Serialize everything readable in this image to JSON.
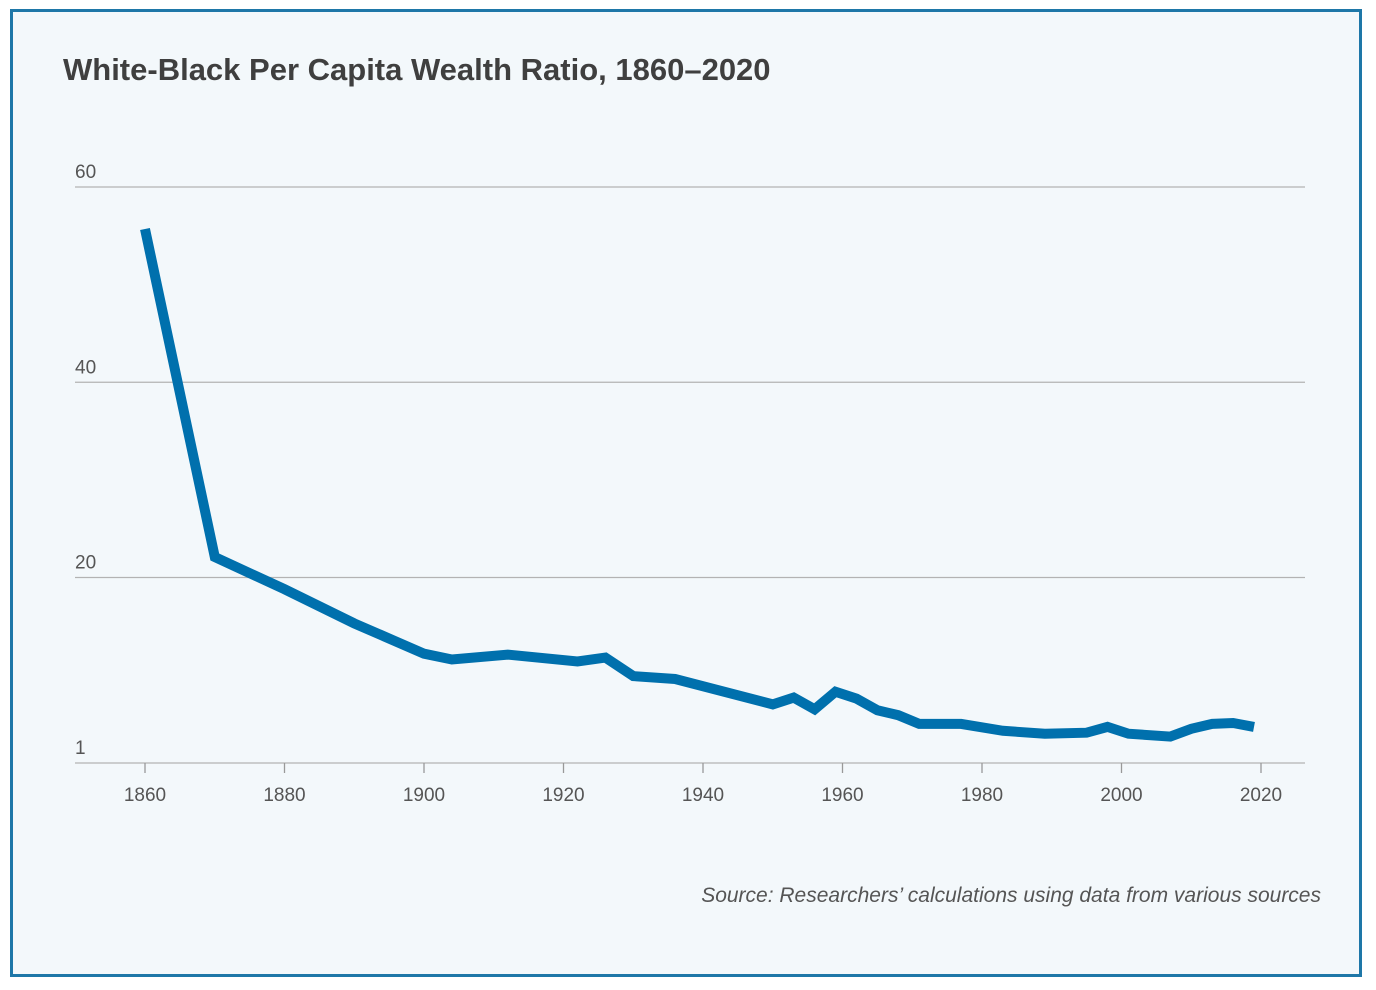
{
  "chart_data": {
    "type": "line",
    "title": "White-Black Per Capita Wealth Ratio, 1860–2020",
    "xlabel": "",
    "ylabel": "",
    "source": "Source: Researchers’ calculations using data from various sources",
    "xlim": [
      1852,
      2026
    ],
    "ylim": [
      1,
      60
    ],
    "x_ticks": [
      1860,
      1880,
      1900,
      1920,
      1940,
      1960,
      1980,
      2000,
      2020
    ],
    "y_ticks": [
      1,
      20,
      40,
      60
    ],
    "grid": "horizontal",
    "line_color": "#0070ad",
    "series": [
      {
        "x": [
          1860,
          1870,
          1880,
          1890,
          1900,
          1904,
          1912,
          1922,
          1926,
          1930,
          1936,
          1950,
          1953,
          1956,
          1959,
          1962,
          1965,
          1968,
          1971,
          1977,
          1983,
          1989,
          1995,
          1998,
          2001,
          2007,
          2010,
          2013,
          2016,
          2019
        ],
        "y": [
          55.7,
          22.1,
          18.8,
          15.3,
          12.2,
          11.6,
          12.1,
          11.4,
          11.8,
          9.9,
          9.6,
          7.0,
          7.7,
          6.5,
          8.3,
          7.6,
          6.4,
          5.9,
          5.0,
          5.0,
          4.3,
          4.0,
          4.1,
          4.7,
          4.0,
          3.7,
          4.5,
          5.0,
          5.1,
          4.7
        ]
      }
    ]
  },
  "colors": {
    "frame_border": "#1e77a8",
    "background": "#f3f8fb",
    "gridline": "#b3b3b3",
    "text": "#555555",
    "title": "#3f3f3f"
  }
}
